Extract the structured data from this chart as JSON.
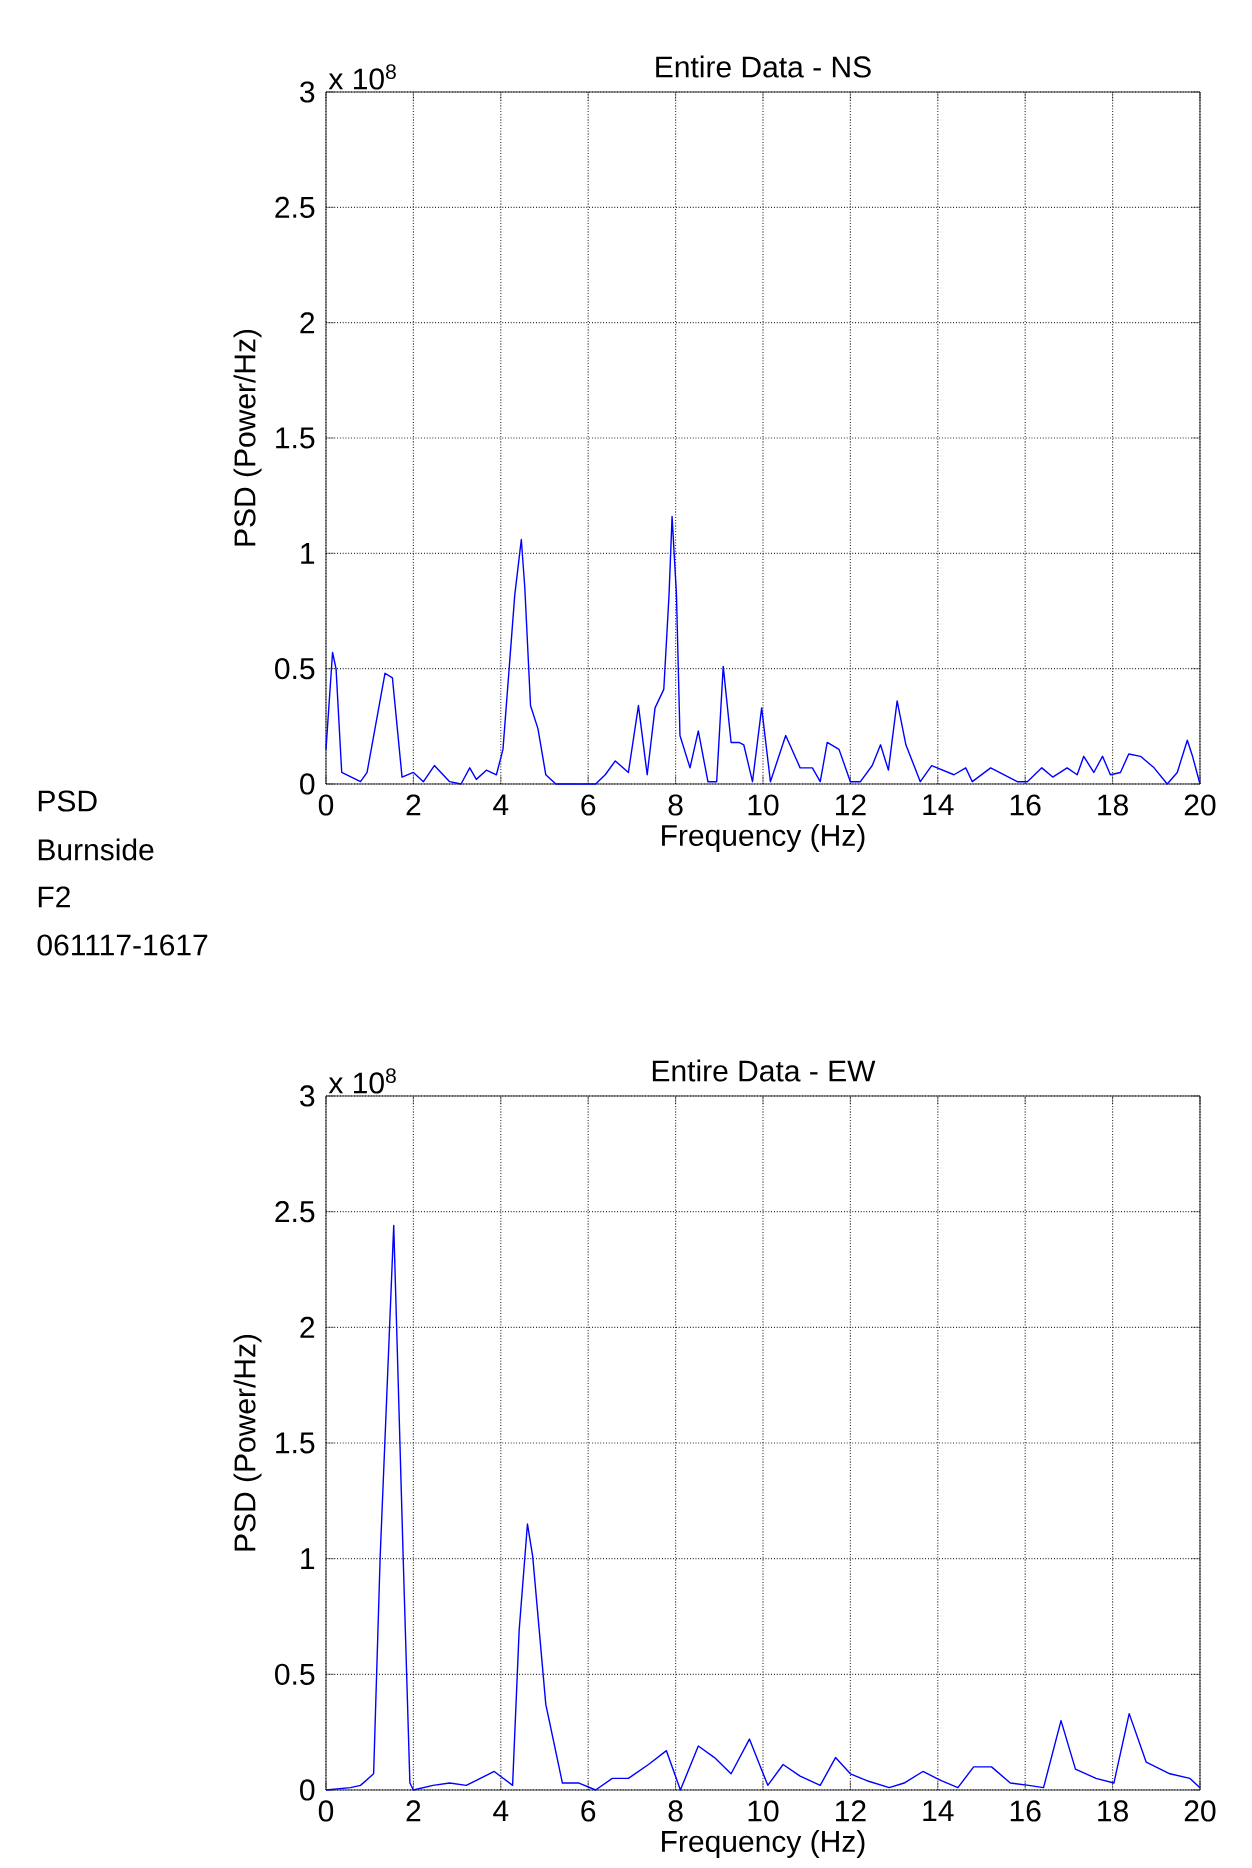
{
  "chart_data": [
    {
      "type": "line",
      "title": "Entire Data - NS",
      "xlabel": "Frequency (Hz)",
      "ylabel": "PSD (Power/Hz)",
      "annotations": [
        "x 10$^{8}$",
        "PSD",
        "Burnside",
        "F2",
        "061117-1617"
      ],
      "xlim": [
        0,
        20
      ],
      "ylim": [
        0,
        3
      ],
      "xticks": [
        0,
        2,
        4,
        6,
        8,
        10,
        12,
        14,
        16,
        18,
        20
      ],
      "yticks": [
        0,
        0.5,
        1,
        1.5,
        2,
        2.5,
        3
      ],
      "grid": true,
      "line_style": "solid",
      "series": [
        {
          "color": "#0000ff",
          "x": [
            0,
            0.15,
            0.23,
            0.36,
            0.79,
            0.94,
            1.35,
            1.52,
            1.74,
            2.0,
            2.23,
            2.48,
            2.83,
            3.09,
            3.29,
            3.44,
            3.67,
            3.9,
            4.05,
            4.32,
            4.42,
            4.47,
            4.55,
            4.68,
            4.85,
            5.03,
            5.26,
            6.17,
            6.39,
            6.62,
            6.92,
            7.15,
            7.35,
            7.53,
            7.73,
            7.85,
            7.92,
            8.02,
            8.1,
            8.33,
            8.52,
            8.74,
            8.94,
            9.09,
            9.27,
            9.45,
            9.56,
            9.76,
            9.97,
            10.17,
            10.52,
            10.85,
            11.13,
            11.31,
            11.47,
            11.74,
            12.0,
            12.23,
            12.5,
            12.69,
            12.87,
            13.07,
            13.27,
            13.6,
            13.86,
            14.37,
            14.64,
            14.79,
            15.21,
            15.82,
            16.05,
            16.38,
            16.63,
            16.96,
            17.19,
            17.34,
            17.57,
            17.77,
            17.95,
            18.18,
            18.37,
            18.64,
            18.95,
            19.25,
            19.48,
            19.71,
            19.83,
            20
          ],
          "values": [
            0.15,
            0.57,
            0.5,
            0.05,
            0.01,
            0.05,
            0.48,
            0.46,
            0.03,
            0.05,
            0.01,
            0.08,
            0.01,
            0,
            0.07,
            0.02,
            0.06,
            0.04,
            0.15,
            0.82,
            0.98,
            1.06,
            0.85,
            0.34,
            0.24,
            0.04,
            0,
            0,
            0.04,
            0.1,
            0.05,
            0.34,
            0.04,
            0.33,
            0.41,
            0.82,
            1.16,
            0.82,
            0.21,
            0.07,
            0.23,
            0.01,
            0.01,
            0.51,
            0.18,
            0.18,
            0.17,
            0.01,
            0.33,
            0.01,
            0.21,
            0.07,
            0.07,
            0.01,
            0.18,
            0.15,
            0.01,
            0.01,
            0.08,
            0.17,
            0.06,
            0.36,
            0.17,
            0.01,
            0.08,
            0.04,
            0.07,
            0.01,
            0.07,
            0.01,
            0.01,
            0.07,
            0.03,
            0.07,
            0.04,
            0.12,
            0.05,
            0.12,
            0.04,
            0.05,
            0.13,
            0.12,
            0.07,
            0,
            0.05,
            0.19,
            0.12,
            0
          ]
        }
      ]
    },
    {
      "type": "line",
      "title": "Entire Data - EW",
      "xlabel": "Frequency (Hz)",
      "ylabel": "PSD (Power/Hz)",
      "annotations": [
        "x 10$^{8}$"
      ],
      "xlim": [
        0,
        20
      ],
      "ylim": [
        0,
        3
      ],
      "xticks": [
        0,
        2,
        4,
        6,
        8,
        10,
        12,
        14,
        16,
        18,
        20
      ],
      "yticks": [
        0,
        0.5,
        1,
        1.5,
        2,
        2.5,
        3
      ],
      "grid": true,
      "line_style": "solid",
      "series": [
        {
          "color": "#0000ff",
          "x": [
            0,
            0.56,
            0.79,
            1.09,
            1.24,
            1.39,
            1.55,
            1.62,
            1.77,
            1.92,
            2.0,
            2.45,
            2.83,
            3.21,
            3.85,
            4.27,
            4.42,
            4.61,
            4.73,
            5.03,
            5.41,
            5.79,
            6.17,
            6.55,
            6.92,
            7.38,
            7.79,
            8.11,
            8.52,
            8.89,
            9.27,
            9.69,
            10.11,
            10.46,
            10.85,
            11.31,
            11.66,
            12.0,
            12.38,
            12.89,
            13.23,
            13.66,
            14.08,
            14.46,
            14.82,
            15.23,
            15.66,
            16.08,
            16.42,
            16.82,
            17.15,
            17.62,
            18.03,
            18.38,
            18.77,
            19.31,
            19.77,
            20
          ],
          "values": [
            0,
            0.01,
            0.02,
            0.07,
            1.01,
            1.7,
            2.44,
            1.98,
            0.98,
            0.03,
            0,
            0.02,
            0.03,
            0.02,
            0.08,
            0.02,
            0.69,
            1.15,
            1.01,
            0.37,
            0.03,
            0.03,
            0,
            0.05,
            0.05,
            0.11,
            0.17,
            0,
            0.19,
            0.14,
            0.07,
            0.22,
            0.02,
            0.11,
            0.06,
            0.02,
            0.14,
            0.07,
            0.04,
            0.01,
            0.03,
            0.08,
            0.04,
            0.01,
            0.1,
            0.1,
            0.03,
            0.02,
            0.01,
            0.3,
            0.09,
            0.05,
            0.03,
            0.33,
            0.12,
            0.07,
            0.05,
            0.01
          ]
        }
      ]
    }
  ]
}
